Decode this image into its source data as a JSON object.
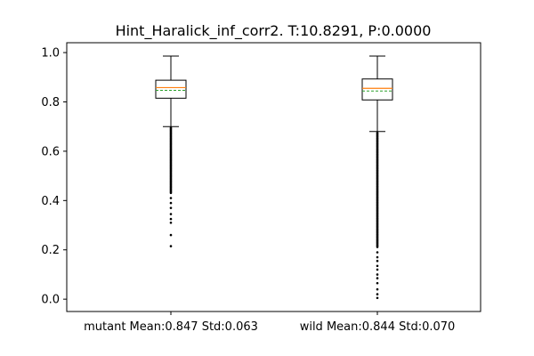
{
  "chart_data": {
    "type": "box",
    "title": "Hint_Haralick_inf_corr2. T:10.8291, P:0.0000",
    "xlabel": "",
    "ylabel": "",
    "ylim": [
      -0.05,
      1.04
    ],
    "yticks": [
      0.0,
      0.2,
      0.4,
      0.6,
      0.8,
      1.0
    ],
    "ytick_labels": [
      "0.0",
      "0.2",
      "0.4",
      "0.6",
      "0.8",
      "1.0"
    ],
    "grid": false,
    "median_color": "#ff7f0e",
    "mean_color": "#2ca02c",
    "categories": [
      "mutant Mean:0.847 Std:0.063",
      "wild Mean:0.844 Std:0.070"
    ],
    "boxes": [
      {
        "label": "mutant Mean:0.847 Std:0.063",
        "whisker_low": 0.7,
        "q1": 0.815,
        "median": 0.858,
        "q3": 0.888,
        "whisker_high": 0.986,
        "mean": 0.847,
        "outliers_dense_range": [
          0.43,
          0.695
        ],
        "outliers": [
          0.41,
          0.39,
          0.37,
          0.345,
          0.325,
          0.31,
          0.26,
          0.215
        ]
      },
      {
        "label": "wild Mean:0.844 Std:0.070",
        "whisker_low": 0.68,
        "q1": 0.808,
        "median": 0.855,
        "q3": 0.893,
        "whisker_high": 0.986,
        "mean": 0.844,
        "outliers_dense_range": [
          0.21,
          0.675
        ],
        "outliers": [
          0.19,
          0.17,
          0.155,
          0.135,
          0.12,
          0.1,
          0.085,
          0.065,
          0.04,
          0.02,
          0.005
        ]
      }
    ]
  }
}
